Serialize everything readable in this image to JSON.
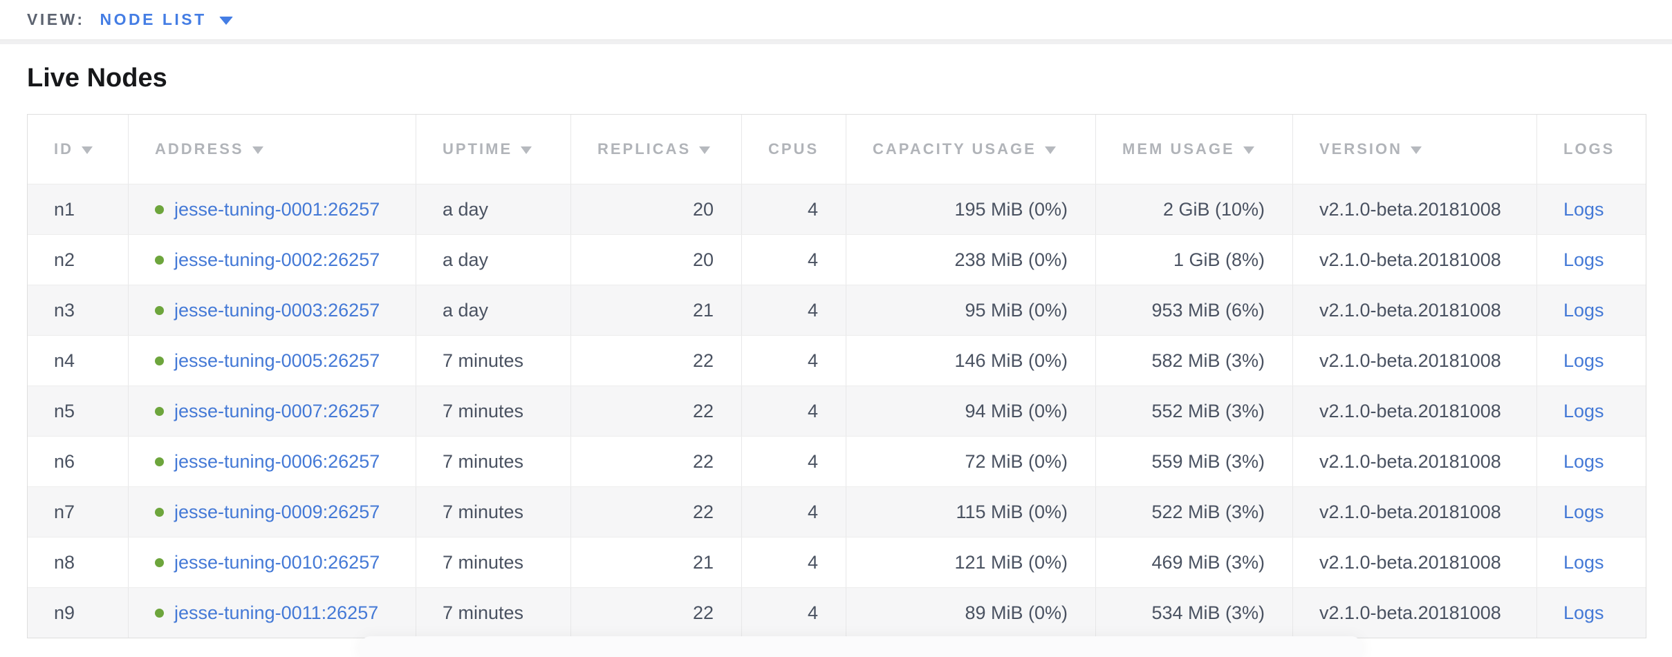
{
  "view_bar": {
    "label": "VIEW:",
    "selected": "NODE LIST"
  },
  "heading": "Live Nodes",
  "icons": {
    "view_dropdown_icon": "triangle-down",
    "sort_icon": "triangle-down",
    "node_status_icon": "green-dot-live"
  },
  "colors": {
    "view_selected_blue": "#447de4",
    "link_blue": "#4479d6",
    "live_dot_green": "#6da53c",
    "header_text_gray": "#b1b4b9",
    "cell_text": "#4a5261",
    "row_stripe": "#f6f6f7"
  },
  "table": {
    "columns": [
      {
        "key": "id",
        "label": "ID",
        "sortable": true
      },
      {
        "key": "address",
        "label": "ADDRESS",
        "sortable": true
      },
      {
        "key": "uptime",
        "label": "UPTIME",
        "sortable": true
      },
      {
        "key": "replicas",
        "label": "REPLICAS",
        "sortable": true
      },
      {
        "key": "cpus",
        "label": "CPUS",
        "sortable": false
      },
      {
        "key": "capacity",
        "label": "CAPACITY USAGE",
        "sortable": true
      },
      {
        "key": "mem",
        "label": "MEM USAGE",
        "sortable": true
      },
      {
        "key": "version",
        "label": "VERSION",
        "sortable": true
      },
      {
        "key": "logs",
        "label": "LOGS",
        "sortable": false
      }
    ],
    "rows": [
      {
        "id": "n1",
        "status": "live",
        "address": "jesse-tuning-0001:26257",
        "uptime": "a day",
        "replicas": "20",
        "cpus": "4",
        "capacity": "195 MiB (0%)",
        "mem": "2 GiB (10%)",
        "version": "v2.1.0-beta.20181008",
        "logs_label": "Logs"
      },
      {
        "id": "n2",
        "status": "live",
        "address": "jesse-tuning-0002:26257",
        "uptime": "a day",
        "replicas": "20",
        "cpus": "4",
        "capacity": "238 MiB (0%)",
        "mem": "1 GiB (8%)",
        "version": "v2.1.0-beta.20181008",
        "logs_label": "Logs"
      },
      {
        "id": "n3",
        "status": "live",
        "address": "jesse-tuning-0003:26257",
        "uptime": "a day",
        "replicas": "21",
        "cpus": "4",
        "capacity": "95 MiB (0%)",
        "mem": "953 MiB (6%)",
        "version": "v2.1.0-beta.20181008",
        "logs_label": "Logs"
      },
      {
        "id": "n4",
        "status": "live",
        "address": "jesse-tuning-0005:26257",
        "uptime": "7 minutes",
        "replicas": "22",
        "cpus": "4",
        "capacity": "146 MiB (0%)",
        "mem": "582 MiB (3%)",
        "version": "v2.1.0-beta.20181008",
        "logs_label": "Logs"
      },
      {
        "id": "n5",
        "status": "live",
        "address": "jesse-tuning-0007:26257",
        "uptime": "7 minutes",
        "replicas": "22",
        "cpus": "4",
        "capacity": "94 MiB (0%)",
        "mem": "552 MiB (3%)",
        "version": "v2.1.0-beta.20181008",
        "logs_label": "Logs"
      },
      {
        "id": "n6",
        "status": "live",
        "address": "jesse-tuning-0006:26257",
        "uptime": "7 minutes",
        "replicas": "22",
        "cpus": "4",
        "capacity": "72 MiB (0%)",
        "mem": "559 MiB (3%)",
        "version": "v2.1.0-beta.20181008",
        "logs_label": "Logs"
      },
      {
        "id": "n7",
        "status": "live",
        "address": "jesse-tuning-0009:26257",
        "uptime": "7 minutes",
        "replicas": "22",
        "cpus": "4",
        "capacity": "115 MiB (0%)",
        "mem": "522 MiB (3%)",
        "version": "v2.1.0-beta.20181008",
        "logs_label": "Logs"
      },
      {
        "id": "n8",
        "status": "live",
        "address": "jesse-tuning-0010:26257",
        "uptime": "7 minutes",
        "replicas": "21",
        "cpus": "4",
        "capacity": "121 MiB (0%)",
        "mem": "469 MiB (3%)",
        "version": "v2.1.0-beta.20181008",
        "logs_label": "Logs"
      },
      {
        "id": "n9",
        "status": "live",
        "address": "jesse-tuning-0011:26257",
        "uptime": "7 minutes",
        "replicas": "22",
        "cpus": "4",
        "capacity": "89 MiB (0%)",
        "mem": "534 MiB (3%)",
        "version": "v2.1.0-beta.20181008",
        "logs_label": "Logs"
      }
    ]
  }
}
